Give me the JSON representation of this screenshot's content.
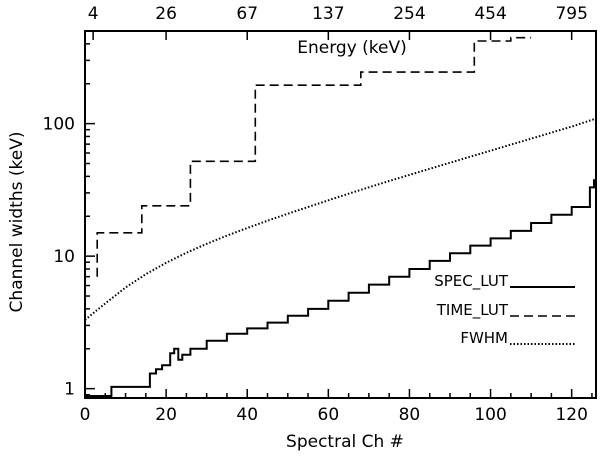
{
  "chart_data": {
    "type": "line",
    "xlabel": "Spectral Ch #",
    "ylabel": "Channel widths (keV)",
    "top_axis_label": "Energy (keV)",
    "y_scale": "log",
    "xlim": [
      0,
      126
    ],
    "ylim": [
      0.85,
      500
    ],
    "x_ticks": [
      0,
      20,
      40,
      60,
      80,
      100,
      120
    ],
    "x_tick_labels": [
      "0",
      "20",
      "40",
      "60",
      "80",
      "100",
      "120"
    ],
    "y_ticks": [
      1,
      10,
      100
    ],
    "y_tick_labels": [
      "1",
      "10",
      "100"
    ],
    "top_ticks": [
      {
        "channel": 2,
        "label": "4"
      },
      {
        "channel": 20,
        "label": "26"
      },
      {
        "channel": 40,
        "label": "67"
      },
      {
        "channel": 60,
        "label": "137"
      },
      {
        "channel": 80,
        "label": "254"
      },
      {
        "channel": 100,
        "label": "454"
      },
      {
        "channel": 120,
        "label": "795"
      }
    ],
    "series": [
      {
        "name": "SPEC_LUT",
        "style": "solid",
        "kind": "step",
        "points": [
          [
            0,
            0.88
          ],
          [
            6.5,
            0.88
          ],
          [
            6.5,
            1.03
          ],
          [
            16,
            1.3
          ],
          [
            17.5,
            1.4
          ],
          [
            19,
            1.5
          ],
          [
            21,
            1.85
          ],
          [
            22,
            2.0
          ],
          [
            23,
            1.65
          ],
          [
            24,
            1.8
          ],
          [
            26,
            2.0
          ],
          [
            30,
            2.3
          ],
          [
            35,
            2.6
          ],
          [
            40,
            2.85
          ],
          [
            45,
            3.15
          ],
          [
            50,
            3.55
          ],
          [
            55,
            4.0
          ],
          [
            60,
            4.6
          ],
          [
            65,
            5.3
          ],
          [
            70,
            6.1
          ],
          [
            75,
            7.0
          ],
          [
            80,
            8.0
          ],
          [
            85,
            9.2
          ],
          [
            90,
            10.5
          ],
          [
            95,
            12.0
          ],
          [
            100,
            13.6
          ],
          [
            105,
            15.5
          ],
          [
            110,
            17.8
          ],
          [
            115,
            20.5
          ],
          [
            120,
            23.5
          ],
          [
            124.5,
            26.5
          ],
          [
            124.5,
            33
          ],
          [
            125.5,
            38
          ]
        ]
      },
      {
        "name": "TIME_LUT",
        "style": "dashed",
        "kind": "step",
        "points": [
          [
            3,
            7
          ],
          [
            3,
            15
          ],
          [
            14,
            15
          ],
          [
            14,
            24
          ],
          [
            26,
            24
          ],
          [
            26,
            52
          ],
          [
            42,
            52
          ],
          [
            42,
            195
          ],
          [
            68,
            195
          ],
          [
            68,
            245
          ],
          [
            96,
            245
          ],
          [
            96,
            420
          ],
          [
            105,
            420
          ],
          [
            105,
            445
          ],
          [
            110,
            445
          ]
        ]
      },
      {
        "name": "FWHM",
        "style": "dotted",
        "kind": "curve",
        "points": [
          [
            0,
            3.3
          ],
          [
            5,
            4.4
          ],
          [
            10,
            5.8
          ],
          [
            15,
            7.3
          ],
          [
            20,
            8.9
          ],
          [
            25,
            10.6
          ],
          [
            30,
            12.4
          ],
          [
            35,
            14.3
          ],
          [
            40,
            16.3
          ],
          [
            45,
            18.5
          ],
          [
            50,
            20.9
          ],
          [
            55,
            23.5
          ],
          [
            60,
            26.4
          ],
          [
            65,
            29.6
          ],
          [
            70,
            33.1
          ],
          [
            75,
            36.9
          ],
          [
            80,
            41.0
          ],
          [
            85,
            45.6
          ],
          [
            90,
            50.7
          ],
          [
            95,
            56.3
          ],
          [
            100,
            62.5
          ],
          [
            105,
            69.4
          ],
          [
            110,
            77.0
          ],
          [
            115,
            85.5
          ],
          [
            120,
            95.0
          ],
          [
            125.5,
            108
          ]
        ]
      }
    ],
    "legend": [
      {
        "label": "SPEC_LUT",
        "style": "solid"
      },
      {
        "label": "TIME_LUT",
        "style": "dashed"
      },
      {
        "label": "FWHM",
        "style": "dotted"
      }
    ],
    "legend_placement": "bottom-right"
  }
}
